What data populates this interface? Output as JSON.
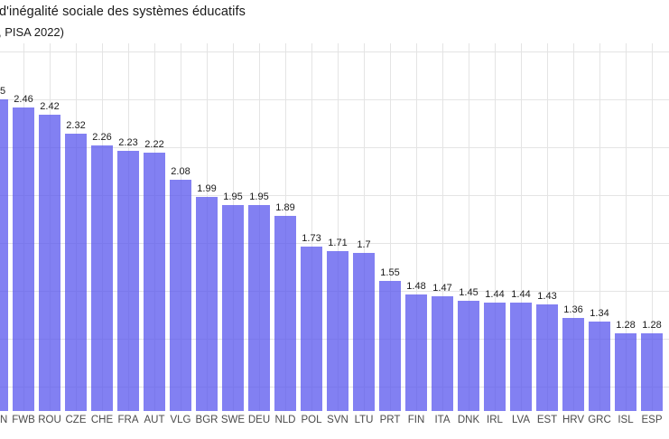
{
  "chart_data": {
    "type": "bar",
    "title": "d'inégalité sociale des systèmes éducatifs",
    "subtitle": ", PISA 2022)",
    "xlabel": "",
    "ylabel": "",
    "categories": [
      "N",
      "FWB",
      "ROU",
      "CZE",
      "CHE",
      "FRA",
      "AUT",
      "VLG",
      "BGR",
      "SWE",
      "DEU",
      "NLD",
      "POL",
      "SVN",
      "LTU",
      "PRT",
      "FIN",
      "ITA",
      "DNK",
      "IRL",
      "LVA",
      "EST",
      "HRV",
      "GRC",
      "ISL",
      "ESP"
    ],
    "values": [
      2.5,
      2.46,
      2.42,
      2.32,
      2.26,
      2.23,
      2.22,
      2.08,
      1.99,
      1.95,
      1.95,
      1.89,
      1.73,
      1.71,
      1.7,
      1.55,
      1.48,
      1.47,
      1.45,
      1.44,
      1.44,
      1.43,
      1.36,
      1.34,
      1.28,
      1.28
    ],
    "value_labels": [
      "5",
      "2.46",
      "2.42",
      "2.32",
      "2.26",
      "2.23",
      "2.22",
      "2.08",
      "1.99",
      "1.95",
      "1.95",
      "1.89",
      "1.73",
      "1.71",
      "1.7",
      "1.55",
      "1.48",
      "1.47",
      "1.45",
      "1.44",
      "1.44",
      "1.43",
      "1.36",
      "1.34",
      "1.28",
      "1.28"
    ],
    "first_category_clipped": true,
    "legend": "none",
    "grid": "both",
    "y_gridlines": [
      1.0,
      1.25,
      1.5,
      1.75,
      2.0,
      2.25,
      2.5,
      2.75
    ],
    "ylim_visible": [
      0.87,
      2.79
    ]
  },
  "colors": {
    "bar_fill": "rgba(88,86,238,0.75)",
    "bar_solid_approx": "#8280f0",
    "gridline": "#e4e4e4",
    "value_label_text": "#1a1a1a",
    "axis_label_text": "#4a4a4a",
    "background": "#ffffff"
  }
}
